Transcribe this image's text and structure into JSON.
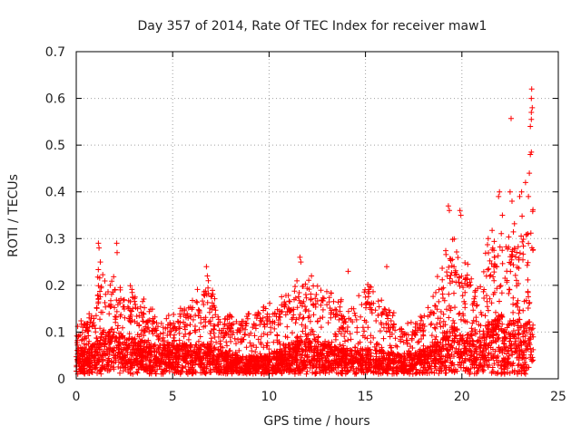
{
  "chart_data": {
    "type": "scatter",
    "title": "Day 357 of 2014, Rate Of TEC Index for receiver maw1",
    "xlabel": "GPS time / hours",
    "ylabel": "ROTI / TECUs",
    "xlim": [
      0,
      25
    ],
    "ylim": [
      0,
      0.7
    ],
    "xticks": [
      0,
      5,
      10,
      15,
      20,
      25
    ],
    "yticks": [
      0,
      0.1,
      0.2,
      0.3,
      0.4,
      0.5,
      0.6,
      0.7
    ],
    "xtick_labels": [
      "0",
      "5",
      "10",
      "15",
      "20",
      "25"
    ],
    "ytick_labels": [
      "0",
      "0.1",
      "0.2",
      "0.3",
      "0.4",
      "0.5",
      "0.6",
      "0.7"
    ],
    "grid": true,
    "marker": "+",
    "series": [
      {
        "name": "ROTI",
        "color": "#ff0000",
        "data_range": [
          0.0,
          23.7
        ],
        "profile": [
          {
            "x": 0.0,
            "base": 0.04,
            "peak": 0.1
          },
          {
            "x": 1.0,
            "base": 0.05,
            "peak": 0.14
          },
          {
            "x": 1.1,
            "base": 0.06,
            "peak": 0.2
          },
          {
            "x": 1.2,
            "base": 0.07,
            "peak": 0.22
          },
          {
            "x": 1.5,
            "base": 0.07,
            "peak": 0.18
          },
          {
            "x": 2.0,
            "base": 0.07,
            "peak": 0.2
          },
          {
            "x": 3.0,
            "base": 0.06,
            "peak": 0.17
          },
          {
            "x": 4.0,
            "base": 0.05,
            "peak": 0.13
          },
          {
            "x": 5.0,
            "base": 0.05,
            "peak": 0.12
          },
          {
            "x": 6.0,
            "base": 0.05,
            "peak": 0.15
          },
          {
            "x": 6.8,
            "base": 0.05,
            "peak": 0.2
          },
          {
            "x": 7.5,
            "base": 0.04,
            "peak": 0.12
          },
          {
            "x": 8.5,
            "base": 0.03,
            "peak": 0.12
          },
          {
            "x": 10.0,
            "base": 0.03,
            "peak": 0.14
          },
          {
            "x": 11.0,
            "base": 0.05,
            "peak": 0.17
          },
          {
            "x": 11.8,
            "base": 0.06,
            "peak": 0.2
          },
          {
            "x": 13.0,
            "base": 0.05,
            "peak": 0.18
          },
          {
            "x": 14.0,
            "base": 0.04,
            "peak": 0.14
          },
          {
            "x": 15.0,
            "base": 0.04,
            "peak": 0.18
          },
          {
            "x": 16.0,
            "base": 0.04,
            "peak": 0.15
          },
          {
            "x": 17.0,
            "base": 0.03,
            "peak": 0.1
          },
          {
            "x": 18.0,
            "base": 0.04,
            "peak": 0.13
          },
          {
            "x": 19.0,
            "base": 0.06,
            "peak": 0.22
          },
          {
            "x": 19.5,
            "base": 0.08,
            "peak": 0.28
          },
          {
            "x": 20.0,
            "base": 0.07,
            "peak": 0.22
          },
          {
            "x": 21.0,
            "base": 0.06,
            "peak": 0.2
          },
          {
            "x": 21.5,
            "base": 0.09,
            "peak": 0.3
          },
          {
            "x": 22.0,
            "base": 0.1,
            "peak": 0.3
          },
          {
            "x": 22.5,
            "base": 0.09,
            "peak": 0.28
          },
          {
            "x": 23.0,
            "base": 0.09,
            "peak": 0.3
          },
          {
            "x": 23.7,
            "base": 0.09,
            "peak": 0.33
          }
        ],
        "spikes": [
          {
            "x": 1.15,
            "y": 0.29
          },
          {
            "x": 1.18,
            "y": 0.28
          },
          {
            "x": 1.25,
            "y": 0.25
          },
          {
            "x": 2.1,
            "y": 0.29
          },
          {
            "x": 2.12,
            "y": 0.27
          },
          {
            "x": 6.75,
            "y": 0.24
          },
          {
            "x": 6.8,
            "y": 0.22
          },
          {
            "x": 6.85,
            "y": 0.21
          },
          {
            "x": 11.6,
            "y": 0.26
          },
          {
            "x": 11.65,
            "y": 0.25
          },
          {
            "x": 12.2,
            "y": 0.22
          },
          {
            "x": 14.1,
            "y": 0.23
          },
          {
            "x": 16.1,
            "y": 0.24
          },
          {
            "x": 19.3,
            "y": 0.37
          },
          {
            "x": 19.35,
            "y": 0.36
          },
          {
            "x": 19.9,
            "y": 0.36
          },
          {
            "x": 19.95,
            "y": 0.35
          },
          {
            "x": 21.9,
            "y": 0.39
          },
          {
            "x": 21.95,
            "y": 0.4
          },
          {
            "x": 22.1,
            "y": 0.35
          },
          {
            "x": 22.5,
            "y": 0.4
          },
          {
            "x": 22.6,
            "y": 0.38
          },
          {
            "x": 22.55,
            "y": 0.557
          },
          {
            "x": 23.0,
            "y": 0.39
          },
          {
            "x": 23.1,
            "y": 0.4
          },
          {
            "x": 23.3,
            "y": 0.42
          },
          {
            "x": 23.45,
            "y": 0.39
          },
          {
            "x": 23.5,
            "y": 0.44
          },
          {
            "x": 23.55,
            "y": 0.48
          },
          {
            "x": 23.6,
            "y": 0.485
          },
          {
            "x": 23.55,
            "y": 0.54
          },
          {
            "x": 23.6,
            "y": 0.555
          },
          {
            "x": 23.6,
            "y": 0.57
          },
          {
            "x": 23.65,
            "y": 0.58
          },
          {
            "x": 23.6,
            "y": 0.6
          },
          {
            "x": 23.62,
            "y": 0.62
          }
        ]
      }
    ]
  }
}
